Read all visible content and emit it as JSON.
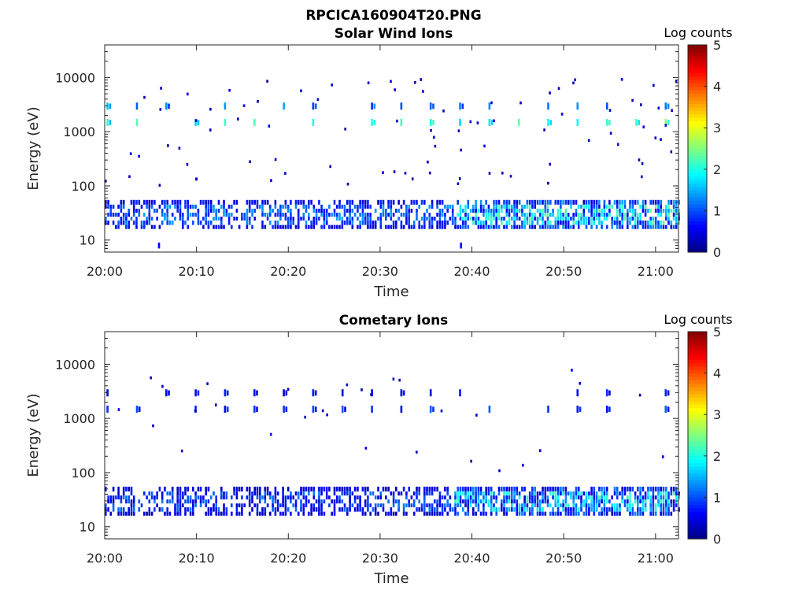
{
  "figure_title": "RPCICA160904T20.PNG",
  "chart_data": [
    {
      "type": "heatmap",
      "title": "Solar Wind Ions",
      "xlabel": "Time",
      "ylabel": "Energy (eV)",
      "x_ticks": [
        "20:00",
        "20:10",
        "20:20",
        "20:30",
        "20:40",
        "20:50",
        "21:00"
      ],
      "x_range_minutes": [
        0,
        62.5
      ],
      "y_scale": "log",
      "y_ticks": [
        "10",
        "100",
        "1000",
        "10000"
      ],
      "y_tick_values": [
        10,
        100,
        1000,
        10000
      ],
      "y_range": [
        6,
        40000
      ],
      "colorbar": {
        "title": "Log counts",
        "ticks": [
          "0",
          "1",
          "2",
          "3",
          "4",
          "5"
        ],
        "range": [
          0,
          5
        ],
        "colormap": "jet"
      },
      "features": {
        "low_band": {
          "energy_range_eV": [
            15,
            55
          ],
          "log_counts_range": [
            0.5,
            2.4
          ]
        },
        "beam_1500": {
          "energy_eV": 1500,
          "period_min": 3.2,
          "log_counts_range": [
            1.5,
            2.6
          ]
        },
        "beam_3000": {
          "energy_eV": 3000,
          "period_min": 3.2,
          "log_counts_range": [
            0.8,
            1.8
          ]
        },
        "bursts": [
          {
            "time_min": 5.8,
            "energy_range_eV": [
              7,
              9
            ],
            "log_counts": 0.6
          },
          {
            "time_min": 38.7,
            "energy_range_eV": [
              7,
              9
            ],
            "log_counts": 0.6
          }
        ]
      }
    },
    {
      "type": "heatmap",
      "title": "Cometary Ions",
      "xlabel": "Time",
      "ylabel": "Energy (eV)",
      "x_ticks": [
        "20:00",
        "20:10",
        "20:20",
        "20:30",
        "20:40",
        "20:50",
        "21:00"
      ],
      "x_range_minutes": [
        0,
        62.5
      ],
      "y_scale": "log",
      "y_ticks": [
        "10",
        "100",
        "1000",
        "10000"
      ],
      "y_tick_values": [
        10,
        100,
        1000,
        10000
      ],
      "y_range": [
        6,
        40000
      ],
      "colorbar": {
        "title": "Log counts",
        "ticks": [
          "0",
          "1",
          "2",
          "3",
          "4",
          "5"
        ],
        "range": [
          0,
          5
        ],
        "colormap": "jet"
      },
      "features": {
        "low_band": {
          "energy_range_eV": [
            15,
            55
          ],
          "log_counts_range": [
            0.3,
            2.2
          ]
        },
        "beam_1500": {
          "energy_eV": 1500,
          "period_min": 3.2,
          "log_counts_range": [
            0.5,
            1.1
          ]
        },
        "beam_3000": {
          "energy_eV": 3000,
          "period_min": 3.2,
          "log_counts_range": [
            0.4,
            0.9
          ]
        }
      }
    }
  ]
}
